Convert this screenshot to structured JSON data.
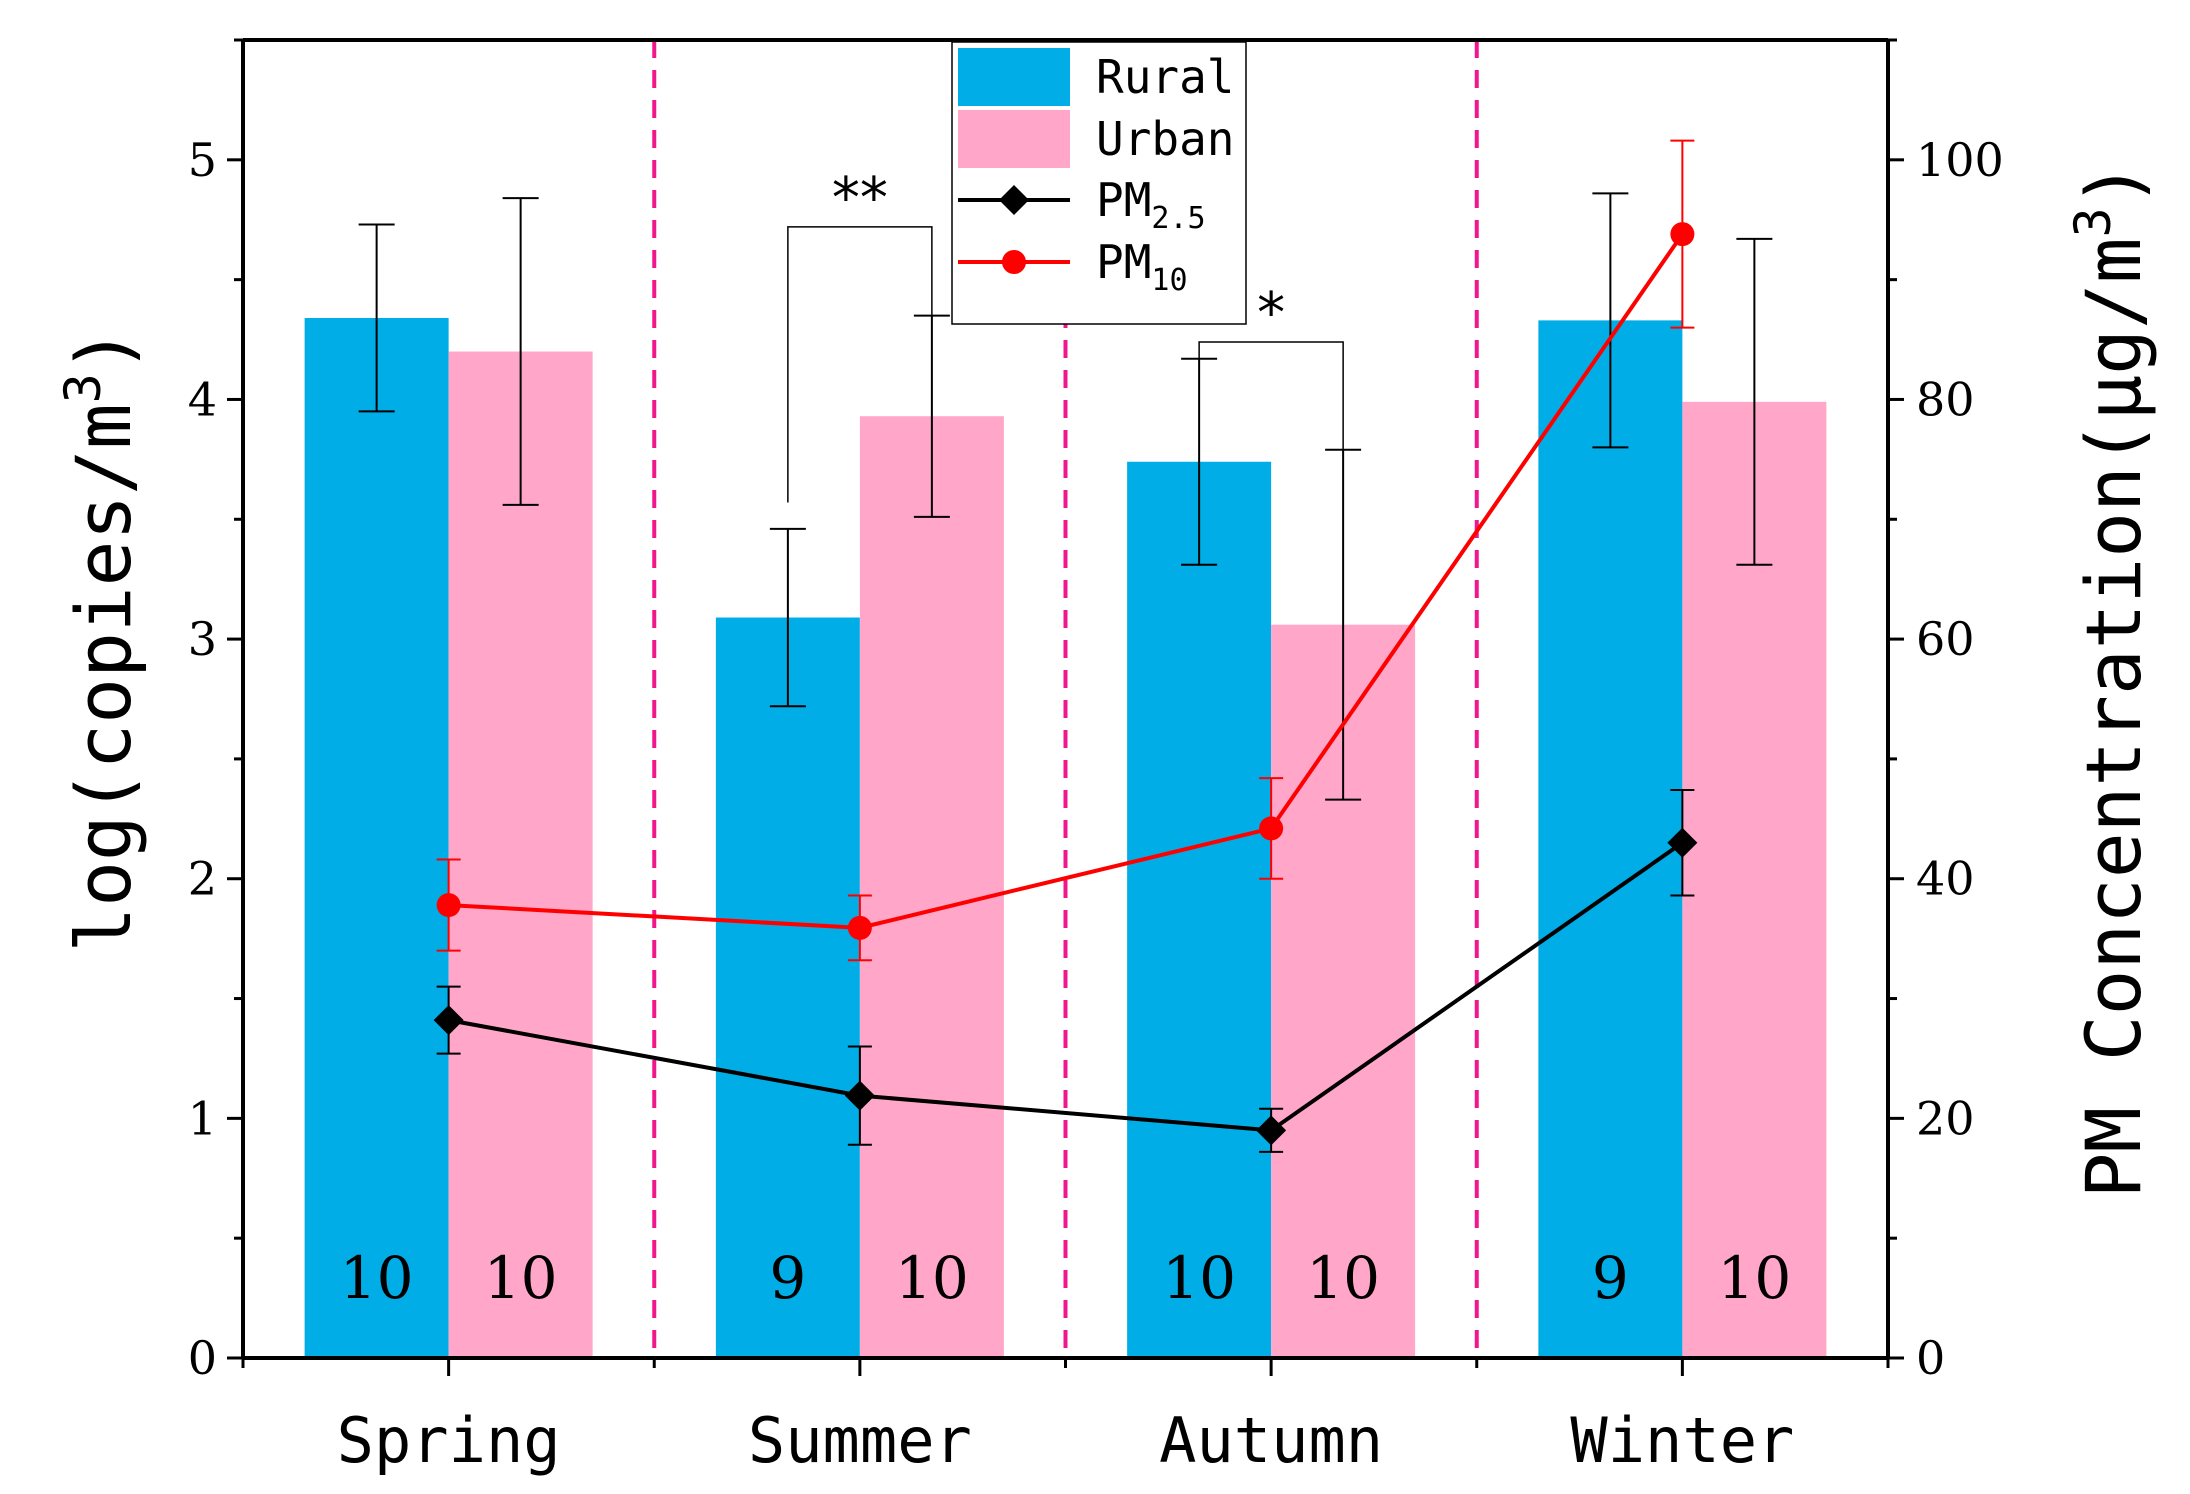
{
  "chart_data": {
    "type": "bar",
    "categories": [
      "Spring",
      "Summer",
      "Autumn",
      "Winter"
    ],
    "series": [
      {
        "name": "Rural",
        "axis": "left",
        "color": "#00ade6",
        "values": [
          4.34,
          3.09,
          3.74,
          4.33
        ],
        "error": [
          0.39,
          0.37,
          0.43,
          0.53
        ],
        "n": [
          "10",
          "9",
          "10",
          "9"
        ]
      },
      {
        "name": "Urban",
        "axis": "left",
        "color": "#ffa6c9",
        "values": [
          4.2,
          3.93,
          3.06,
          3.99
        ],
        "error": [
          0.64,
          0.42,
          0.73,
          0.68
        ],
        "n": [
          "10",
          "10",
          "10",
          "10"
        ]
      }
    ],
    "lines": [
      {
        "name": "PM",
        "subscript": "2.5",
        "axis": "right",
        "color": "#000000",
        "marker": "diamond",
        "values": [
          28.2,
          21.9,
          19.0,
          43.0
        ],
        "error": [
          2.8,
          4.1,
          1.8,
          4.4
        ]
      },
      {
        "name": "PM",
        "subscript": "10",
        "axis": "right",
        "color": "#ff0000",
        "marker": "circle",
        "values": [
          37.8,
          35.9,
          44.2,
          93.8
        ],
        "error": [
          3.8,
          2.7,
          4.2,
          7.8
        ]
      }
    ],
    "ylabel_left": {
      "main": "log(copies/m",
      "sup": "3",
      "close": ")"
    },
    "ylabel_right": {
      "main": "PM Concentration(μg/m",
      "sup": "3",
      "close": ")"
    },
    "ylim_left": [
      0,
      5.5
    ],
    "ylim_right": [
      0,
      110
    ],
    "yticks_left": [
      "0",
      "1",
      "2",
      "3",
      "4",
      "5"
    ],
    "yticks_right": [
      "0",
      "20",
      "40",
      "60",
      "80",
      "100"
    ],
    "significance": [
      {
        "category": "Summer",
        "label": "**",
        "left_top": 3.57,
        "right_top": 4.35,
        "top": 4.72
      },
      {
        "category": "Autumn",
        "label": "*",
        "left_top": 4.17,
        "right_top": 3.79,
        "top": 4.24
      }
    ],
    "separators": "dashed vertical lines between seasons",
    "separator_color": "#f0168c",
    "legend": [
      "Rural",
      "Urban",
      "PM2.5",
      "PM10"
    ],
    "legend_position": "top-center"
  }
}
